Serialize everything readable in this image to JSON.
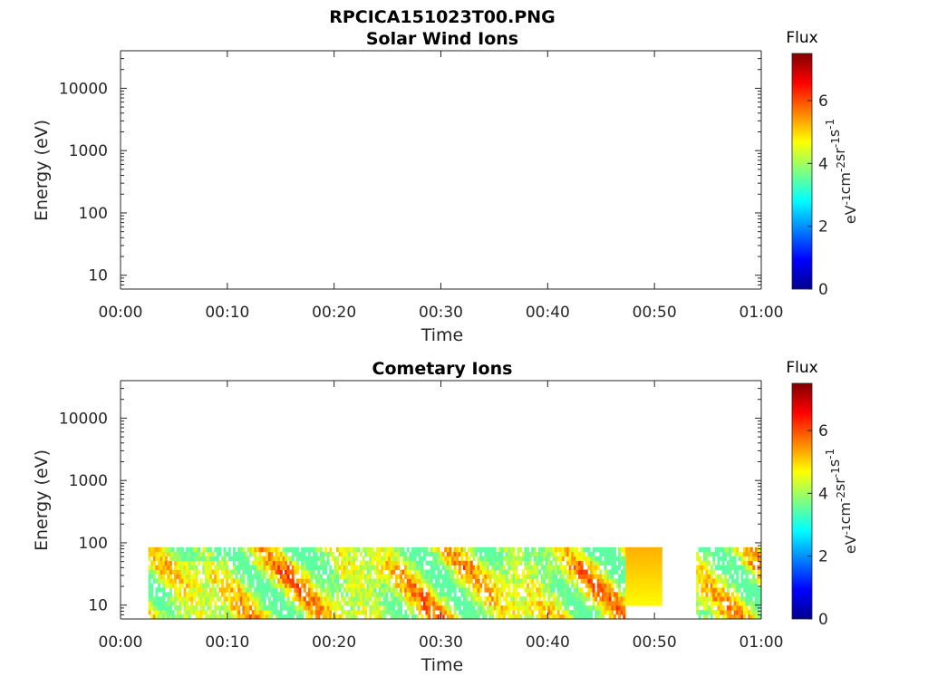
{
  "figure_title": "RPCICA151023T00.PNG",
  "colorbar": {
    "title": "Flux",
    "label_parts": [
      "eV",
      "-1",
      "cm",
      "-2",
      "sr",
      "-1",
      "s",
      "-1"
    ],
    "ticks": [
      "0",
      "2",
      "4",
      "6"
    ],
    "range": [
      0,
      7.5
    ],
    "colormap": "jet"
  },
  "chart_data": [
    {
      "type": "heatmap",
      "title": "Solar Wind Ions",
      "xlabel": "Time",
      "ylabel": "Energy (eV)",
      "x_ticks": [
        "00:00",
        "00:10",
        "00:20",
        "00:30",
        "00:40",
        "00:50",
        "01:00"
      ],
      "xlim_minutes": [
        0,
        60
      ],
      "y_ticks": [
        "10",
        "100",
        "1000",
        "10000"
      ],
      "ylim": [
        6,
        40000
      ],
      "y_scale": "log",
      "bands": []
    },
    {
      "type": "heatmap",
      "title": "Cometary Ions",
      "xlabel": "Time",
      "ylabel": "Energy (eV)",
      "x_ticks": [
        "00:00",
        "00:10",
        "00:20",
        "00:30",
        "00:40",
        "00:50",
        "01:00"
      ],
      "xlim_minutes": [
        0,
        60
      ],
      "y_ticks": [
        "10",
        "100",
        "1000",
        "10000"
      ],
      "ylim": [
        6,
        40000
      ],
      "y_scale": "log",
      "energy_range_eV": [
        6,
        85
      ],
      "flux_range": [
        3.5,
        7.2
      ],
      "bands": [
        {
          "t_start_min": 2.6,
          "t_end_min": 47.3,
          "kind": "varying"
        },
        {
          "t_start_min": 47.3,
          "t_end_min": 50.7,
          "kind": "uniform"
        },
        {
          "t_start_min": 53.9,
          "t_end_min": 60.0,
          "kind": "varying"
        }
      ]
    }
  ]
}
